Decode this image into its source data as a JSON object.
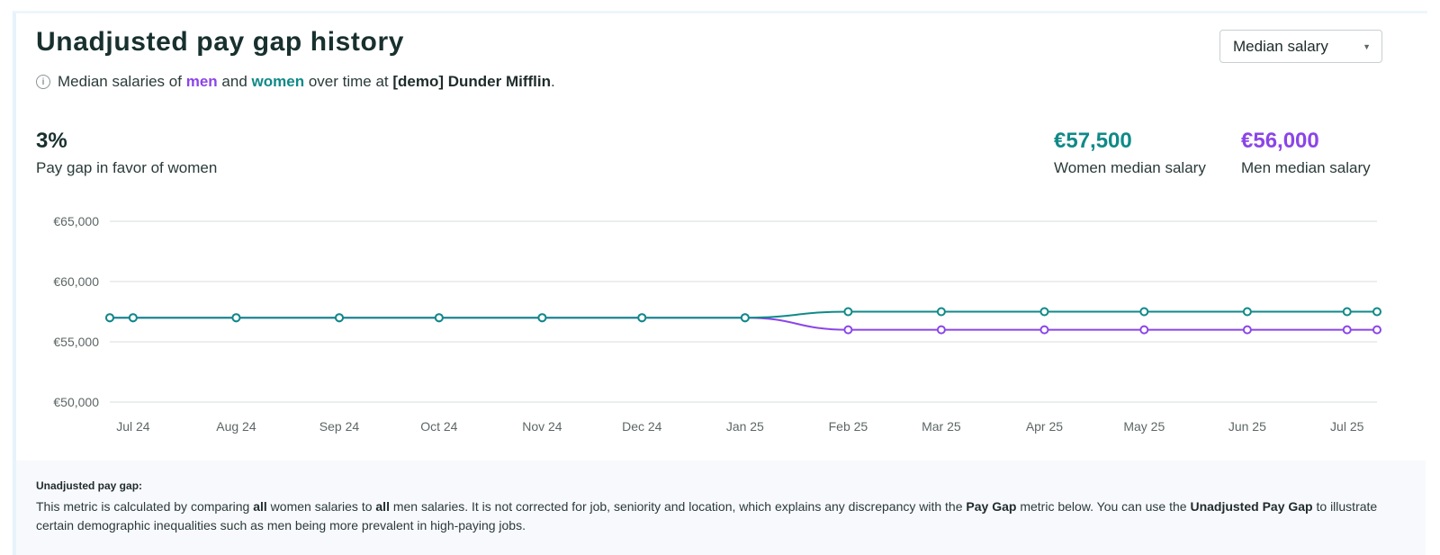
{
  "header": {
    "title": "Unadjusted pay gap history",
    "subtitle": {
      "part1": "Median salaries of",
      "men": "men",
      "and": "and",
      "women": "women",
      "part2": "over time at",
      "company": "[demo] Dunder Mifflin",
      "end": "."
    },
    "dropdown_value": "Median salary"
  },
  "stats": {
    "gap": {
      "value": "3%",
      "label": "Pay gap in favor of women"
    },
    "women": {
      "value": "€57,500",
      "label": "Women median salary"
    },
    "men": {
      "value": "€56,000",
      "label": "Men median salary"
    }
  },
  "colors": {
    "men": "#8b45e8",
    "women": "#0f8a88",
    "grid": "#d9dcdc",
    "axis_text": "#5d6666"
  },
  "chart_data": {
    "type": "line",
    "title": "",
    "xlabel": "",
    "ylabel": "",
    "ylim": [
      50000,
      65000
    ],
    "yticks": [
      50000,
      55000,
      60000,
      65000
    ],
    "ytick_labels": [
      "€50,000",
      "€55,000",
      "€60,000",
      "€65,000"
    ],
    "xtick_labels": [
      "Jul 24",
      "Aug 24",
      "Sep 24",
      "Oct 24",
      "Nov 24",
      "Dec 24",
      "Jan 25",
      "Feb 25",
      "Mar 25",
      "Apr 25",
      "May 25",
      "Jun 25",
      "Jul 25"
    ],
    "x": [
      "2024-07-01",
      "2024-07-08",
      "2024-08-08",
      "2024-09-08",
      "2024-10-08",
      "2024-11-08",
      "2024-12-08",
      "2025-01-08",
      "2025-02-08",
      "2025-03-08",
      "2025-04-08",
      "2025-05-08",
      "2025-06-08",
      "2025-07-08",
      "2025-07-17"
    ],
    "grid": true,
    "legend": "none",
    "series": [
      {
        "name": "men",
        "color": "#8b45e8",
        "values": [
          57000,
          57000,
          57000,
          57000,
          57000,
          57000,
          57000,
          57000,
          56000,
          56000,
          56000,
          56000,
          56000,
          56000,
          56000
        ]
      },
      {
        "name": "women",
        "color": "#0f8a88",
        "values": [
          57000,
          57000,
          57000,
          57000,
          57000,
          57000,
          57000,
          57000,
          57500,
          57500,
          57500,
          57500,
          57500,
          57500,
          57500
        ]
      }
    ]
  },
  "footer": {
    "title": "Unadjusted pay gap:",
    "t1": "This metric is calculated by comparing",
    "b1": "all",
    "t2": "women salaries to",
    "b2": "all",
    "t3": "men salaries. It is not corrected for job, seniority and location, which explains any discrepancy with the",
    "b3": "Pay Gap",
    "t4": "metric below. You can use the",
    "b4": "Unadjusted Pay Gap",
    "t5": "to illustrate certain demographic inequalities such as men being more prevalent in high-paying jobs."
  }
}
